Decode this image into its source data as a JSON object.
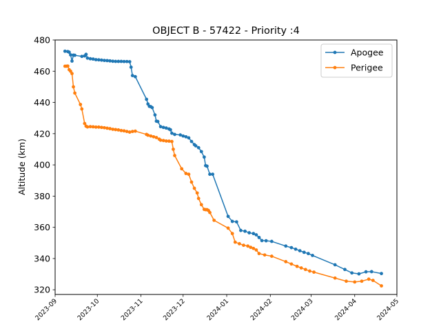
{
  "chart_data": {
    "type": "line",
    "title": "OBJECT B - 57422 - Priority :4",
    "xlabel": "",
    "ylabel": "Altitude (km)",
    "x_type": "date",
    "xlim": [
      "2023-09-01",
      "2024-05-01"
    ],
    "ylim": [
      317,
      480
    ],
    "x_ticks": [
      "2023-09",
      "2023-10",
      "2023-11",
      "2023-12",
      "2024-01",
      "2024-02",
      "2024-03",
      "2024-04",
      "2024-05"
    ],
    "y_ticks": [
      320,
      340,
      360,
      380,
      400,
      420,
      440,
      460,
      480
    ],
    "grid": false,
    "legend": "top-right",
    "series": [
      {
        "name": "Apogee",
        "color": "#1f77b4",
        "x": [
          "2023-09-08",
          "2023-09-10",
          "2023-09-11",
          "2023-09-12",
          "2023-09-13",
          "2023-09-14",
          "2023-09-15",
          "2023-09-20",
          "2023-09-22",
          "2023-09-23",
          "2023-09-24",
          "2023-09-26",
          "2023-09-28",
          "2023-09-30",
          "2023-10-02",
          "2023-10-04",
          "2023-10-06",
          "2023-10-08",
          "2023-10-10",
          "2023-10-12",
          "2023-10-14",
          "2023-10-16",
          "2023-10-18",
          "2023-10-20",
          "2023-10-22",
          "2023-10-24",
          "2023-10-25",
          "2023-10-26",
          "2023-10-28",
          "2023-11-05",
          "2023-11-06",
          "2023-11-07",
          "2023-11-08",
          "2023-11-09",
          "2023-11-11",
          "2023-11-12",
          "2023-11-13",
          "2023-11-15",
          "2023-11-17",
          "2023-11-19",
          "2023-11-21",
          "2023-11-22",
          "2023-11-23",
          "2023-11-25",
          "2023-11-29",
          "2023-12-01",
          "2023-12-03",
          "2023-12-05",
          "2023-12-07",
          "2023-12-09",
          "2023-12-10",
          "2023-12-12",
          "2023-12-14",
          "2023-12-16",
          "2023-12-17",
          "2023-12-18",
          "2023-12-20",
          "2023-12-22",
          "2024-01-02",
          "2024-01-05",
          "2024-01-08",
          "2024-01-11",
          "2024-01-14",
          "2024-01-17",
          "2024-01-20",
          "2024-01-22",
          "2024-01-24",
          "2024-01-26",
          "2024-01-29",
          "2024-02-02",
          "2024-02-12",
          "2024-02-16",
          "2024-02-19",
          "2024-02-22",
          "2024-02-25",
          "2024-02-28",
          "2024-03-02",
          "2024-03-18",
          "2024-03-25",
          "2024-03-30",
          "2024-04-04",
          "2024-04-09",
          "2024-04-13",
          "2024-04-20"
        ],
        "values": [
          472.8,
          472.6,
          472.2,
          470.5,
          466.5,
          470.3,
          470.2,
          469.5,
          469.8,
          470.8,
          468.4,
          468.0,
          467.8,
          467.4,
          467.3,
          467.1,
          466.9,
          466.8,
          466.6,
          466.4,
          466.3,
          466.3,
          466.3,
          466.2,
          466.2,
          466.1,
          462.6,
          457.2,
          456.5,
          442.0,
          439.0,
          437.5,
          437.3,
          436.7,
          432.0,
          428.0,
          427.8,
          424.5,
          424.0,
          423.6,
          423.0,
          422.5,
          420.3,
          419.5,
          419.2,
          418.5,
          418.0,
          417.3,
          415.0,
          413.0,
          412.2,
          411.0,
          408.5,
          405.0,
          399.5,
          399.2,
          394.0,
          394.0,
          367.0,
          363.8,
          363.5,
          358.0,
          357.5,
          356.5,
          356.0,
          355.2,
          353.5,
          351.5,
          351.4,
          351.0,
          348.0,
          347.0,
          346.0,
          345.0,
          344.0,
          343.2,
          342.0,
          336.0,
          333.0,
          330.8,
          330.2,
          331.5,
          331.6,
          330.4
        ]
      },
      {
        "name": "Perigee",
        "color": "#ff7f0e",
        "x": [
          "2023-09-08",
          "2023-09-09",
          "2023-09-10",
          "2023-09-11",
          "2023-09-12",
          "2023-09-13",
          "2023-09-14",
          "2023-09-15",
          "2023-09-19",
          "2023-09-20",
          "2023-09-22",
          "2023-09-23",
          "2023-09-24",
          "2023-09-26",
          "2023-09-28",
          "2023-09-30",
          "2023-10-02",
          "2023-10-04",
          "2023-10-06",
          "2023-10-08",
          "2023-10-10",
          "2023-10-12",
          "2023-10-14",
          "2023-10-16",
          "2023-10-18",
          "2023-10-20",
          "2023-10-22",
          "2023-10-24",
          "2023-10-26",
          "2023-10-28",
          "2023-11-05",
          "2023-11-06",
          "2023-11-08",
          "2023-11-10",
          "2023-11-12",
          "2023-11-14",
          "2023-11-15",
          "2023-11-17",
          "2023-11-19",
          "2023-11-21",
          "2023-11-23",
          "2023-11-24",
          "2023-11-25",
          "2023-11-30",
          "2023-12-03",
          "2023-12-05",
          "2023-12-07",
          "2023-12-09",
          "2023-12-11",
          "2023-12-12",
          "2023-12-14",
          "2023-12-16",
          "2023-12-17",
          "2023-12-18",
          "2023-12-19",
          "2023-12-20",
          "2023-12-23",
          "2024-01-02",
          "2024-01-05",
          "2024-01-07",
          "2024-01-10",
          "2024-01-13",
          "2024-01-16",
          "2024-01-18",
          "2024-01-20",
          "2024-01-22",
          "2024-01-24",
          "2024-01-28",
          "2024-02-02",
          "2024-02-12",
          "2024-02-16",
          "2024-02-20",
          "2024-02-23",
          "2024-02-26",
          "2024-02-29",
          "2024-03-03",
          "2024-03-18",
          "2024-03-26",
          "2024-04-01",
          "2024-04-06",
          "2024-04-11",
          "2024-04-14",
          "2024-04-20"
        ],
        "values": [
          463.2,
          463.2,
          463.3,
          461.0,
          460.0,
          458.5,
          450.0,
          446.0,
          438.7,
          435.8,
          426.5,
          424.8,
          424.3,
          424.5,
          424.4,
          424.2,
          424.2,
          424.0,
          423.8,
          423.5,
          423.2,
          422.8,
          422.6,
          422.4,
          422.0,
          421.8,
          421.4,
          421.0,
          421.4,
          421.6,
          419.5,
          419.0,
          418.5,
          418.0,
          417.5,
          416.5,
          415.8,
          415.6,
          415.3,
          415.2,
          415.0,
          410.0,
          406.0,
          397.5,
          394.5,
          394.0,
          389.0,
          385.0,
          382.0,
          378.5,
          374.5,
          371.5,
          371.3,
          371.3,
          370.8,
          369.5,
          364.5,
          359.5,
          356.0,
          350.5,
          349.5,
          348.5,
          348.0,
          347.2,
          346.5,
          345.5,
          343.2,
          342.3,
          341.5,
          338.0,
          336.5,
          335.0,
          334.0,
          333.0,
          332.0,
          331.3,
          327.5,
          325.5,
          325.0,
          325.5,
          326.8,
          326.0,
          322.5
        ]
      }
    ]
  }
}
